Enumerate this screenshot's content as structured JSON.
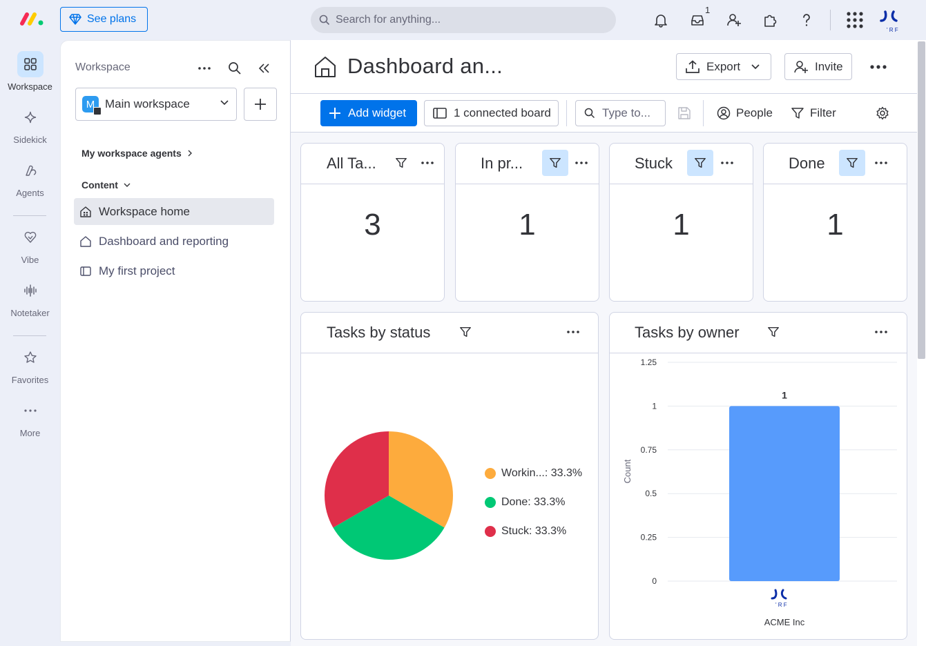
{
  "topbar": {
    "see_plans": "See plans",
    "search_placeholder": "Search for anything...",
    "inbox_badge": "1"
  },
  "rail": {
    "items": [
      {
        "label": "Workspace"
      },
      {
        "label": "Sidekick"
      },
      {
        "label": "Agents"
      },
      {
        "label": "Vibe"
      },
      {
        "label": "Notetaker"
      },
      {
        "label": "Favorites"
      },
      {
        "label": "More"
      }
    ]
  },
  "panel": {
    "title": "Workspace",
    "workspace_name": "Main workspace",
    "workspace_initial": "M",
    "agents_link": "My workspace agents",
    "content_label": "Content",
    "nav": [
      {
        "label": "Workspace home"
      },
      {
        "label": "Dashboard and reporting"
      },
      {
        "label": "My first project"
      }
    ]
  },
  "main": {
    "title": "Dashboard an...",
    "export_label": "Export",
    "invite_label": "Invite",
    "toolbar": {
      "add_widget": "Add widget",
      "connected_boards": "1 connected board",
      "type_placeholder": "Type to...",
      "people": "People",
      "filter": "Filter"
    }
  },
  "widgets": {
    "counters": [
      {
        "title": "All Ta...",
        "value": "3"
      },
      {
        "title": "In pr...",
        "value": "1"
      },
      {
        "title": "Stuck",
        "value": "1"
      },
      {
        "title": "Done",
        "value": "1"
      }
    ],
    "status_title": "Tasks by status",
    "owner_title": "Tasks by owner"
  },
  "chart_data": [
    {
      "type": "pie",
      "title": "Tasks by status",
      "slices": [
        {
          "label": "Workin...",
          "percent": "33.3%",
          "value": 33.3,
          "color": "#fdab3d"
        },
        {
          "label": "Done",
          "percent": "33.3%",
          "value": 33.3,
          "color": "#00c875"
        },
        {
          "label": "Stuck",
          "percent": "33.3%",
          "value": 33.3,
          "color": "#df2f4a"
        }
      ]
    },
    {
      "type": "bar",
      "title": "Tasks by owner",
      "categories": [
        "ACME Inc"
      ],
      "values": [
        1
      ],
      "data_labels": [
        "1"
      ],
      "ylabel": "Count",
      "ylim": [
        0,
        1.25
      ],
      "yticks": [
        "0",
        "0.25",
        "0.5",
        "0.75",
        "1",
        "1.25"
      ],
      "color": "#579bfc",
      "grid": true
    }
  ]
}
